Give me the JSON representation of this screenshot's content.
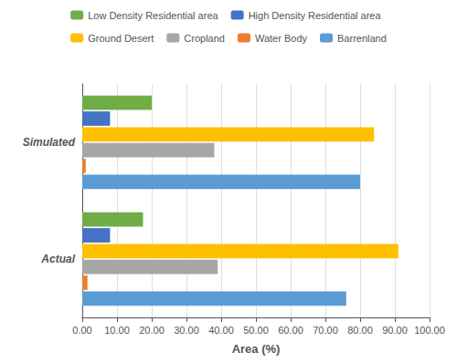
{
  "chart_data": {
    "type": "bar",
    "orientation": "horizontal",
    "categories": [
      "Simulated",
      "Actual"
    ],
    "series": [
      {
        "name": "Low Density Residential area",
        "color": "#70ad47",
        "values": [
          20.0,
          17.5
        ]
      },
      {
        "name": "High Density Residential area",
        "color": "#4472c4",
        "values": [
          8.0,
          8.0
        ]
      },
      {
        "name": "Ground Desert",
        "color": "#ffc000",
        "values": [
          84.0,
          91.0
        ]
      },
      {
        "name": "Cropland",
        "color": "#a6a6a6",
        "values": [
          38.0,
          39.0
        ]
      },
      {
        "name": "Water Body",
        "color": "#ed7d31",
        "values": [
          1.0,
          1.5
        ]
      },
      {
        "name": "Barrenland",
        "color": "#5b9bd5",
        "values": [
          80.0,
          76.0
        ]
      }
    ],
    "xlabel": "Area (%)",
    "xlim": [
      0,
      100
    ],
    "xticks": [
      {
        "value": 0,
        "label": "0.00"
      },
      {
        "value": 10,
        "label": "10.00"
      },
      {
        "value": 20,
        "label": "20.00"
      },
      {
        "value": 30,
        "label": "30.00"
      },
      {
        "value": 40,
        "label": "40.00"
      },
      {
        "value": 50,
        "label": "50.00"
      },
      {
        "value": 60,
        "label": "60.00"
      },
      {
        "value": 70,
        "label": "70.00"
      },
      {
        "value": 80,
        "label": "80.00"
      },
      {
        "value": 90,
        "label": "90.00"
      },
      {
        "value": 100,
        "label": "100.00"
      }
    ],
    "grid": true,
    "legend": "top"
  }
}
